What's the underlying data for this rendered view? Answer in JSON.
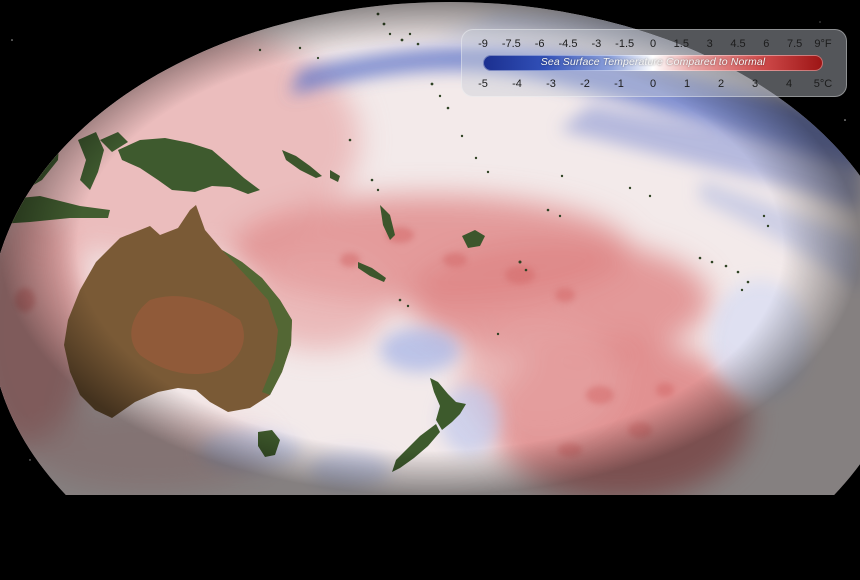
{
  "legend": {
    "title": "Sea Surface Temperature  Compared to Normal",
    "fahrenheit_ticks": [
      "-9",
      "-7.5",
      "-6",
      "-4.5",
      "-3",
      "-1.5",
      "0",
      "1.5",
      "3",
      "4.5",
      "6",
      "7.5",
      "9°F"
    ],
    "celsius_ticks": [
      "-5",
      "-4",
      "-3",
      "-2",
      "-1",
      "0",
      "1",
      "2",
      "3",
      "4",
      "5°C"
    ],
    "color_scale": {
      "cold": "#1b2f8f",
      "neutral": "#ffffff",
      "warm": "#9c1414"
    }
  },
  "map": {
    "region": "Western Pacific / Oceania",
    "land_color": "#5a6b3c",
    "background_color": "#000000"
  }
}
